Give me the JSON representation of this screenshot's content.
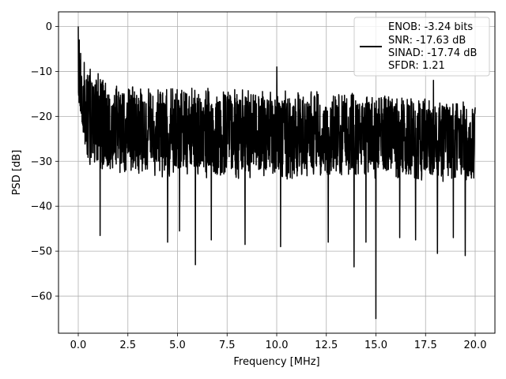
{
  "chart_data": {
    "type": "line",
    "title": "",
    "xlabel": "Frequency [MHz]",
    "ylabel": "PSD [dB]",
    "xlim": [
      -0.996,
      20.996
    ],
    "ylim": [
      -68.25,
      3.25
    ],
    "xticks": [
      0.0,
      2.5,
      5.0,
      7.5,
      10.0,
      12.5,
      15.0,
      17.5,
      20.0
    ],
    "xtick_labels": [
      "0.0",
      "2.5",
      "5.0",
      "7.5",
      "10.0",
      "12.5",
      "15.0",
      "17.5",
      "20.0"
    ],
    "yticks": [
      0,
      -10,
      -20,
      -30,
      -40,
      -50,
      -60
    ],
    "ytick_labels": [
      "0",
      "−10",
      "−20",
      "−30",
      "−40",
      "−50",
      "−60"
    ],
    "grid": true,
    "legend_position": "top-right",
    "series": [
      {
        "color": "#000000",
        "legend_lines": [
          "ENOB: -3.24 bits",
          "SNR: -17.63 dB",
          "SINAD: -17.74 dB",
          "SFDR: 1.21"
        ],
        "x_range": [
          0.0,
          20.0
        ],
        "num_points": 2000,
        "band_upper": [
          [
            0.0,
            -2
          ],
          [
            0.1,
            -8
          ],
          [
            0.5,
            -10
          ],
          [
            1.5,
            -12
          ],
          [
            3.0,
            -13
          ],
          [
            5.0,
            -13.5
          ],
          [
            10.0,
            -14
          ],
          [
            15.0,
            -15
          ],
          [
            20.0,
            -17
          ]
        ],
        "band_lower": [
          [
            0.0,
            -16
          ],
          [
            0.3,
            -28
          ],
          [
            0.5,
            -31
          ],
          [
            2.0,
            -33
          ],
          [
            5.0,
            -34
          ],
          [
            10.0,
            -34
          ],
          [
            15.0,
            -34
          ],
          [
            20.0,
            -35
          ]
        ],
        "peaks": [
          [
            0.0,
            0.0
          ],
          [
            0.05,
            -3
          ],
          [
            0.12,
            -6
          ],
          [
            0.3,
            -8
          ],
          [
            0.6,
            -9.5
          ],
          [
            1.0,
            -10.5
          ],
          [
            10.0,
            -9
          ],
          [
            17.9,
            -12
          ],
          [
            20.0,
            -18
          ]
        ],
        "dips": [
          [
            1.1,
            -46.5
          ],
          [
            4.5,
            -48
          ],
          [
            5.1,
            -45.5
          ],
          [
            5.9,
            -53
          ],
          [
            6.7,
            -47.5
          ],
          [
            8.4,
            -48.5
          ],
          [
            10.2,
            -49
          ],
          [
            12.6,
            -48
          ],
          [
            13.9,
            -53.5
          ],
          [
            14.5,
            -48
          ],
          [
            15.0,
            -65
          ],
          [
            16.2,
            -47
          ],
          [
            17.0,
            -47.5
          ],
          [
            18.1,
            -50.5
          ],
          [
            18.9,
            -47
          ],
          [
            19.5,
            -51
          ]
        ]
      }
    ]
  }
}
